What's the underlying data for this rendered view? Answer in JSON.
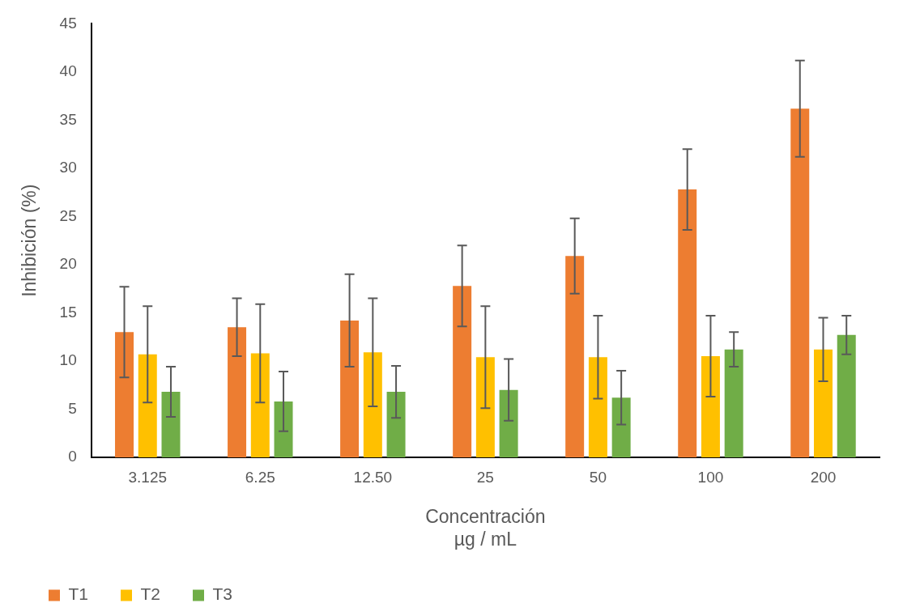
{
  "chart_data": {
    "type": "bar",
    "xlabel": "Concentración\nµg / mL",
    "ylabel": "Inhibición (%)",
    "categories": [
      "3.125",
      "6.25",
      "12.50",
      "25",
      "50",
      "100",
      "200"
    ],
    "series": [
      {
        "name": "T1",
        "color": "#ed7d31",
        "values": [
          13.0,
          13.5,
          14.2,
          17.8,
          20.9,
          27.8,
          36.2
        ],
        "errors": [
          4.7,
          3.0,
          4.8,
          4.2,
          3.9,
          4.2,
          5.0
        ]
      },
      {
        "name": "T2",
        "color": "#ffc000",
        "values": [
          10.7,
          10.8,
          10.9,
          10.4,
          10.4,
          10.5,
          11.2
        ],
        "errors": [
          5.0,
          5.1,
          5.6,
          5.3,
          4.3,
          4.2,
          3.3
        ]
      },
      {
        "name": "T3",
        "color": "#70ad47",
        "values": [
          6.8,
          5.8,
          6.8,
          7.0,
          6.2,
          11.2,
          12.7
        ],
        "errors": [
          2.6,
          3.1,
          2.7,
          3.2,
          2.8,
          1.8,
          2.0
        ]
      }
    ],
    "ylim": [
      0,
      45
    ],
    "yticks": [
      0,
      5,
      10,
      15,
      20,
      25,
      30,
      35,
      40,
      45
    ],
    "grid": false,
    "legend": "bottom left"
  }
}
